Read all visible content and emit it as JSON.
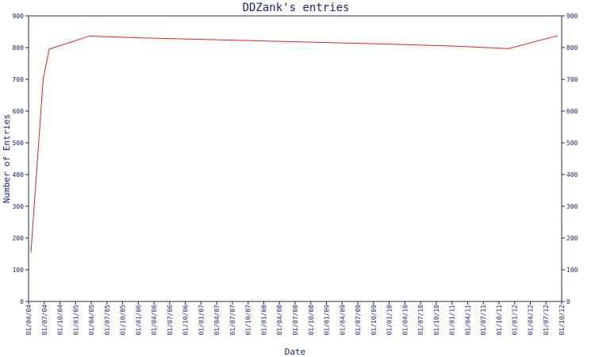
{
  "chart_data": {
    "type": "line",
    "title": "DDZank's entries",
    "xlabel": "Date",
    "ylabel": "Number of Entries",
    "ylim": [
      0,
      900
    ],
    "y_ticks": [
      "0",
      "100",
      "200",
      "300",
      "400",
      "500",
      "600",
      "700",
      "800",
      "900"
    ],
    "x_ticks": [
      "01/04/04",
      "01/07/04",
      "01/10/04",
      "01/01/05",
      "01/04/05",
      "01/07/05",
      "01/10/05",
      "01/01/06",
      "01/04/06",
      "01/07/06",
      "01/10/06",
      "01/01/07",
      "01/04/07",
      "01/07/07",
      "01/10/07",
      "01/01/08",
      "01/04/08",
      "01/07/08",
      "01/10/08",
      "01/01/09",
      "01/04/09",
      "01/07/09",
      "01/10/09",
      "01/01/10",
      "01/04/10",
      "01/07/10",
      "01/10/10",
      "01/01/11",
      "01/04/11",
      "01/07/11",
      "01/10/11",
      "01/01/12",
      "01/04/12",
      "01/07/12",
      "01/10/12"
    ],
    "xlim": [
      "2004-04-01",
      "2012-10-01"
    ],
    "grid": false,
    "right_axis": true,
    "colors": {
      "line": "#e02020",
      "axis": "#1a237e",
      "text": "#1a237e"
    },
    "series": [
      {
        "x": [
          "2004-04-15",
          "2004-06-25",
          "2004-07-30",
          "2005-03-25",
          "2005-06-01",
          "2006-01-01",
          "2007-01-01",
          "2008-01-01",
          "2009-01-01",
          "2010-01-01",
          "2011-01-01",
          "2011-11-25",
          "2012-09-05"
        ],
        "values": [
          155,
          700,
          795,
          837,
          835,
          831,
          826,
          821,
          816,
          811,
          805,
          797,
          837
        ]
      }
    ]
  }
}
